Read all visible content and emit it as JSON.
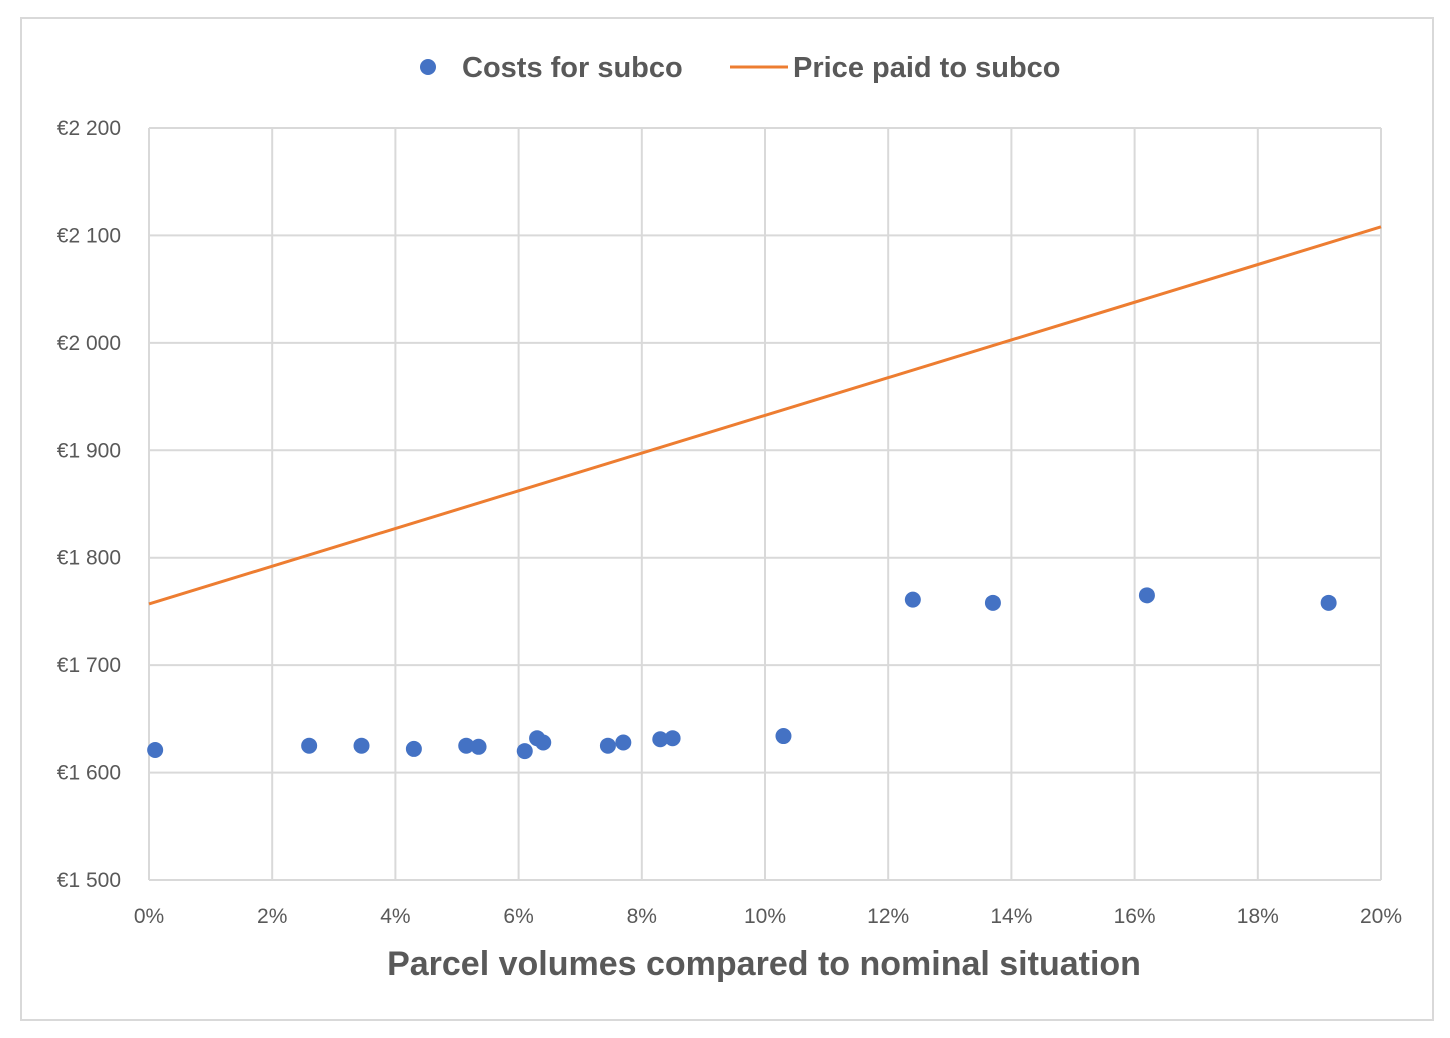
{
  "chart_data": {
    "type": "scatter",
    "title": "",
    "xlabel": "Parcel volumes compared to nominal situation",
    "ylabel": "",
    "xlim": [
      0,
      20
    ],
    "ylim": [
      1500,
      2200
    ],
    "x_ticks": [
      0,
      2,
      4,
      6,
      8,
      10,
      12,
      14,
      16,
      18,
      20
    ],
    "x_tick_labels": [
      "0%",
      "2%",
      "4%",
      "6%",
      "8%",
      "10%",
      "12%",
      "14%",
      "16%",
      "18%",
      "20%"
    ],
    "y_ticks": [
      1500,
      1600,
      1700,
      1800,
      1900,
      2000,
      2100,
      2200
    ],
    "y_tick_labels": [
      "€1 500",
      "€1 600",
      "€1 700",
      "€1 800",
      "€1 900",
      "€2 000",
      "€2 100",
      "€2 200"
    ],
    "grid": true,
    "legend_position": "top-center",
    "series": [
      {
        "name": "Costs for subco",
        "kind": "scatter",
        "color": "#4472C4",
        "x": [
          0.1,
          2.6,
          3.45,
          4.3,
          5.15,
          5.35,
          6.1,
          6.3,
          6.4,
          7.45,
          7.7,
          8.3,
          8.5,
          10.3,
          12.4,
          13.7,
          16.2,
          19.15
        ],
        "y": [
          1621,
          1625,
          1625,
          1622,
          1625,
          1624,
          1620,
          1632,
          1628,
          1625,
          1628,
          1631,
          1632,
          1634,
          1761,
          1758,
          1765,
          1758
        ]
      },
      {
        "name": "Price paid to subco",
        "kind": "line",
        "color": "#ED7D31",
        "x": [
          0,
          20
        ],
        "y": [
          1757,
          2108
        ]
      }
    ]
  }
}
